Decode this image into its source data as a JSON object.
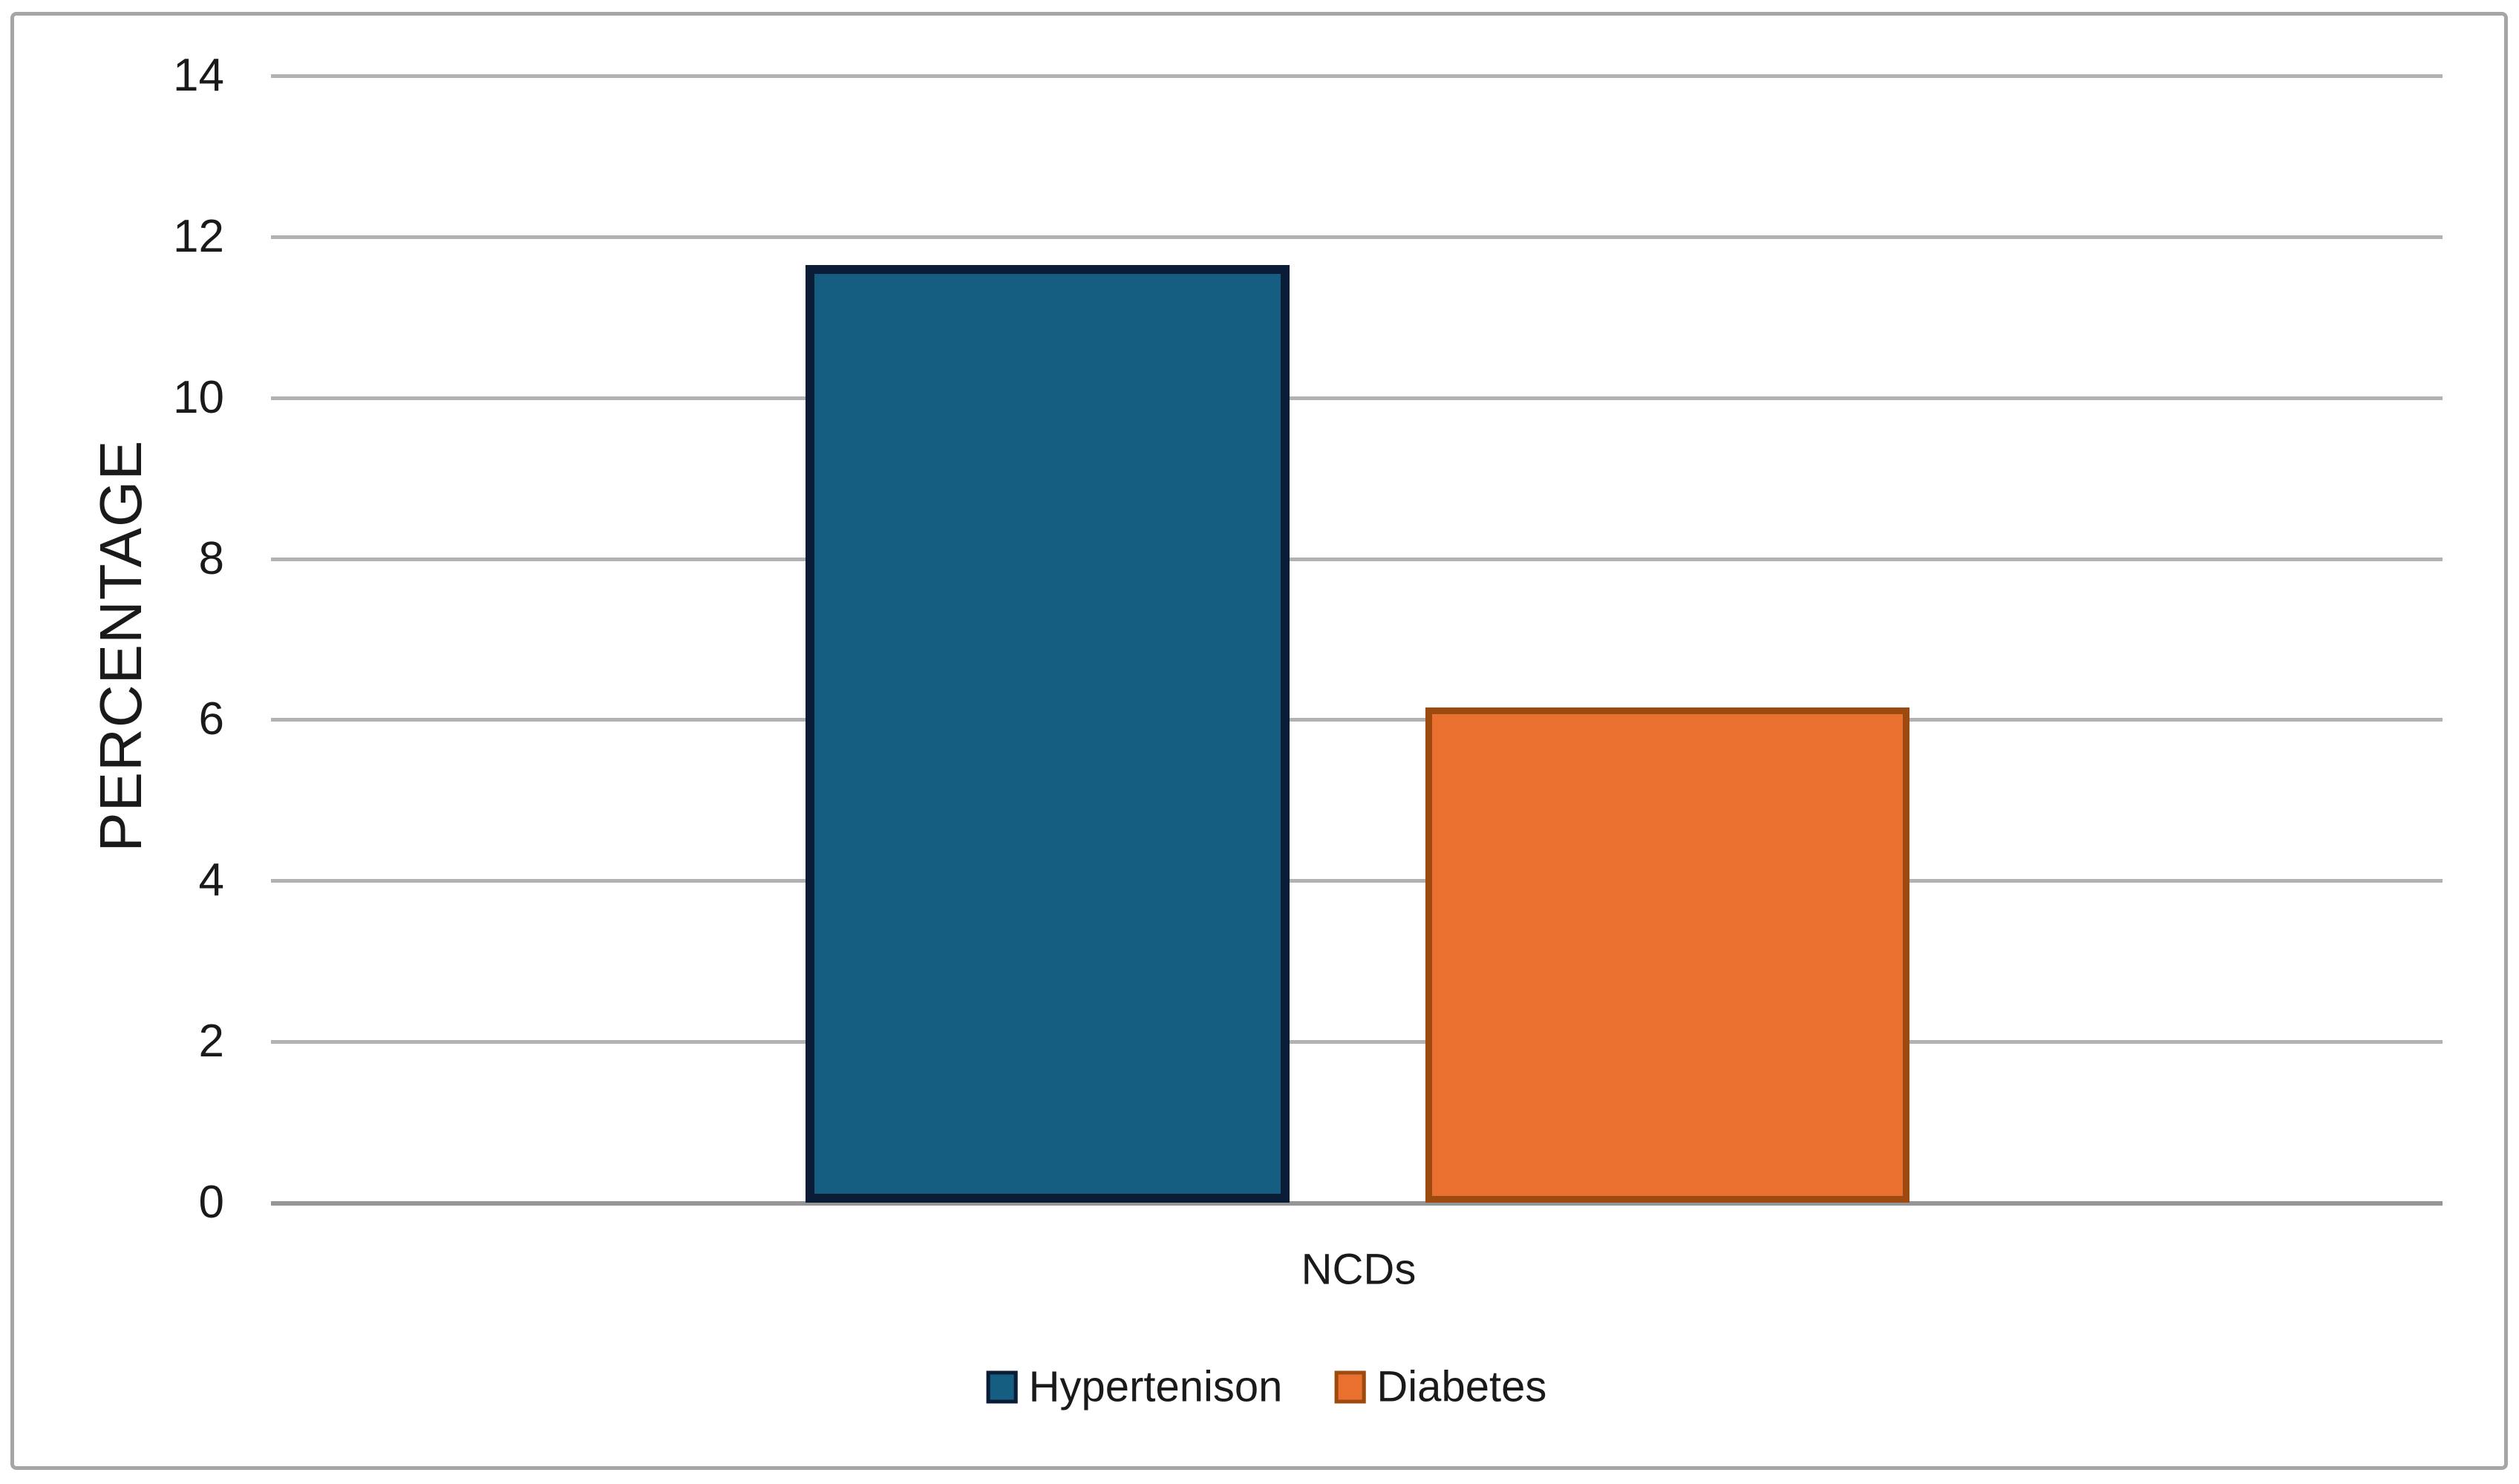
{
  "chart_data": {
    "type": "bar",
    "title": "",
    "categories": [
      "NCDs"
    ],
    "series": [
      {
        "name": "Hypertenison",
        "values": [
          11.65
        ],
        "color": "#155e82",
        "border_color": "#0b1d36"
      },
      {
        "name": "Diabetes",
        "values": [
          6.15
        ],
        "color": "#ea7030",
        "border_color": "#9c4a10"
      }
    ],
    "xlabel": "NCDs",
    "ylabel": "PERCENTAGE",
    "ylim": [
      0,
      14
    ],
    "yticks": [
      14,
      12,
      10,
      8,
      6,
      4,
      2,
      0
    ],
    "grid": true,
    "legend_position": "bottom"
  },
  "colors": {
    "gridline": "#b2b2b2",
    "axis_baseline": "#969696",
    "frame_border": "#a6a6a6",
    "text": "#1a1a1a",
    "background": "#ffffff"
  }
}
